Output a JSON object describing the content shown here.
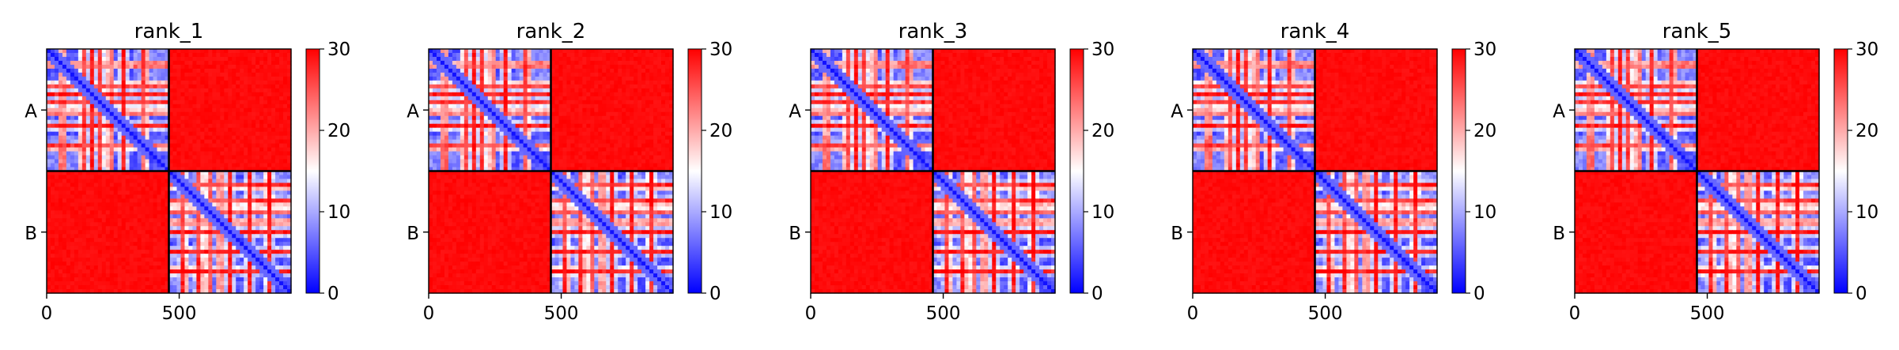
{
  "chart_data": [
    {
      "type": "heatmap",
      "title": "rank_1",
      "chains": [
        "A",
        "B"
      ],
      "x_ticks": [
        0,
        500
      ],
      "x_range": [
        0,
        922
      ],
      "chain_boundary": 461,
      "colorbar": {
        "min": 0,
        "max": 30,
        "ticks": [
          0,
          10,
          20,
          30
        ],
        "colors": [
          "#0000ff",
          "#ffffff",
          "#ff0000"
        ]
      },
      "intra_chain_error": "low",
      "inter_chain_error": 30
    },
    {
      "type": "heatmap",
      "title": "rank_2",
      "chains": [
        "A",
        "B"
      ],
      "x_ticks": [
        0,
        500
      ],
      "x_range": [
        0,
        922
      ],
      "chain_boundary": 461,
      "colorbar": {
        "min": 0,
        "max": 30,
        "ticks": [
          0,
          10,
          20,
          30
        ],
        "colors": [
          "#0000ff",
          "#ffffff",
          "#ff0000"
        ]
      },
      "intra_chain_error": "low",
      "inter_chain_error": 30
    },
    {
      "type": "heatmap",
      "title": "rank_3",
      "chains": [
        "A",
        "B"
      ],
      "x_ticks": [
        0,
        500
      ],
      "x_range": [
        0,
        922
      ],
      "chain_boundary": 461,
      "colorbar": {
        "min": 0,
        "max": 30,
        "ticks": [
          0,
          10,
          20,
          30
        ],
        "colors": [
          "#0000ff",
          "#ffffff",
          "#ff0000"
        ]
      },
      "intra_chain_error": "low",
      "inter_chain_error": 30
    },
    {
      "type": "heatmap",
      "title": "rank_4",
      "chains": [
        "A",
        "B"
      ],
      "x_ticks": [
        0,
        500
      ],
      "x_range": [
        0,
        922
      ],
      "chain_boundary": 461,
      "colorbar": {
        "min": 0,
        "max": 30,
        "ticks": [
          0,
          10,
          20,
          30
        ],
        "colors": [
          "#0000ff",
          "#ffffff",
          "#ff0000"
        ]
      },
      "intra_chain_error": "low",
      "inter_chain_error": 30
    },
    {
      "type": "heatmap",
      "title": "rank_5",
      "chains": [
        "A",
        "B"
      ],
      "x_ticks": [
        0,
        500
      ],
      "x_range": [
        0,
        922
      ],
      "chain_boundary": 461,
      "colorbar": {
        "min": 0,
        "max": 30,
        "ticks": [
          0,
          10,
          20,
          30
        ],
        "colors": [
          "#0000ff",
          "#ffffff",
          "#ff0000"
        ]
      },
      "intra_chain_error": "low",
      "inter_chain_error": 30
    }
  ]
}
